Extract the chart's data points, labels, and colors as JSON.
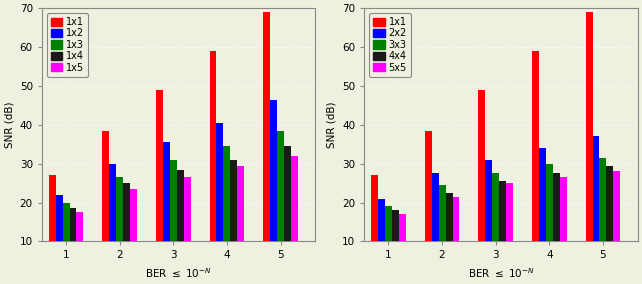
{
  "left": {
    "ylabel": "SNR (dB)",
    "ylim": [
      10,
      70
    ],
    "yticks": [
      10,
      20,
      30,
      40,
      50,
      60,
      70
    ],
    "xticks": [
      1,
      2,
      3,
      4,
      5
    ],
    "legend_labels": [
      "1x1",
      "1x2",
      "1x3",
      "1x4",
      "1x5"
    ],
    "colors": [
      "#ff0000",
      "#0000ff",
      "#008000",
      "#1a1a1a",
      "#ff00ff"
    ],
    "data": [
      [
        27.0,
        38.5,
        49.0,
        59.0,
        69.0
      ],
      [
        22.0,
        30.0,
        35.5,
        40.5,
        46.5
      ],
      [
        20.0,
        26.5,
        31.0,
        34.5,
        38.5
      ],
      [
        18.5,
        25.0,
        28.5,
        31.0,
        34.5
      ],
      [
        17.5,
        23.5,
        26.5,
        29.5,
        32.0
      ]
    ]
  },
  "right": {
    "ylabel": "SNR (dB)",
    "ylim": [
      10,
      70
    ],
    "yticks": [
      10,
      20,
      30,
      40,
      50,
      60,
      70
    ],
    "xticks": [
      1,
      2,
      3,
      4,
      5
    ],
    "legend_labels": [
      "1x1",
      "2x2",
      "3x3",
      "4x4",
      "5x5"
    ],
    "colors": [
      "#ff0000",
      "#0000ff",
      "#008000",
      "#1a1a1a",
      "#ff00ff"
    ],
    "data": [
      [
        27.0,
        38.5,
        49.0,
        59.0,
        69.0
      ],
      [
        21.0,
        27.5,
        31.0,
        34.0,
        37.0
      ],
      [
        19.0,
        24.5,
        27.5,
        30.0,
        31.5
      ],
      [
        18.0,
        22.5,
        25.5,
        27.5,
        29.5
      ],
      [
        17.0,
        21.5,
        25.0,
        26.5,
        28.0
      ]
    ]
  },
  "bar_width": 0.13,
  "fig_width": 6.42,
  "fig_height": 2.84,
  "dpi": 100,
  "background_color": "#f0f0e0",
  "grid_color": "#ffffff",
  "font_size": 7.5,
  "xlabel": "BER ≤ 10$^{-N}$"
}
